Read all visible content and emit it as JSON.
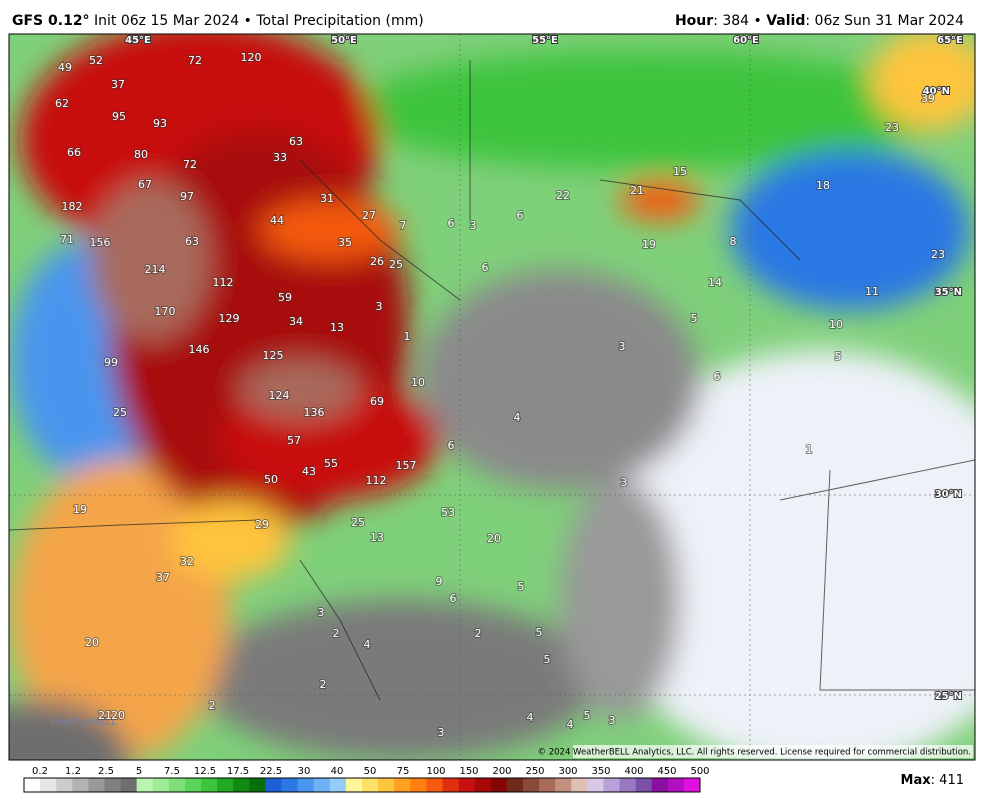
{
  "header": {
    "model": "GFS 0.12°",
    "init": "Init 06z 15 Mar 2024 • Total Precipitation (mm)",
    "hour_key": "Hour",
    "hour_value": ": 384 • ",
    "valid_key": "Valid",
    "valid_value": ": 06z Sun 31 Mar 2024"
  },
  "grid_labels": [
    "45°E",
    "50°E",
    "55°E",
    "60°E",
    "65°E",
    "40°N",
    "35°N",
    "30°N",
    "25°N"
  ],
  "map_labels": [
    49,
    52,
    72,
    120,
    37,
    62,
    95,
    93,
    63,
    66,
    80,
    33,
    72,
    67,
    97,
    31,
    182,
    27,
    44,
    7,
    6,
    3,
    6,
    22,
    21,
    15,
    18,
    23,
    39,
    71,
    156,
    63,
    35,
    19,
    8,
    214,
    26,
    25,
    6,
    23,
    112,
    59,
    14,
    11,
    3,
    170,
    129,
    34,
    13,
    5,
    10,
    1,
    146,
    125,
    3,
    5,
    99,
    10,
    6,
    124,
    69,
    136,
    25,
    4,
    57,
    6,
    1,
    55,
    157,
    43,
    50,
    112,
    3,
    19,
    53,
    25,
    29,
    13,
    20,
    32,
    37,
    9,
    5,
    6,
    3,
    2,
    4,
    20,
    2,
    5,
    5,
    2,
    2,
    21,
    20,
    4,
    3,
    4,
    5,
    3
  ],
  "logo": "WeatherBELL",
  "copyright": "© 2024 WeatherBELL Analytics, LLC. All rights reserved. License required for commercial distribution.",
  "colorbar": {
    "ticks": [
      0.2,
      1.2,
      2.5,
      5,
      7.5,
      12.5,
      17.5,
      22.5,
      30,
      40,
      50,
      75,
      100,
      150,
      200,
      250,
      300,
      350,
      400,
      450,
      500
    ],
    "colors": [
      "#ffffff",
      "#e6e6e6",
      "#cccccc",
      "#b3b3b3",
      "#999999",
      "#808080",
      "#6e6e6e",
      "#b9f5b0",
      "#a0eb96",
      "#7fe07a",
      "#5ad45a",
      "#3cc43c",
      "#22a822",
      "#108a10",
      "#0b6e0b",
      "#1c5fd6",
      "#2b78e4",
      "#4a95ee",
      "#6db2f4",
      "#96cdf8",
      "#fff59a",
      "#ffe066",
      "#ffc43d",
      "#ffa020",
      "#ff7f10",
      "#f55a10",
      "#e03010",
      "#c81010",
      "#a80808",
      "#860606",
      "#6e2a1a",
      "#8a4a3a",
      "#a86b5b",
      "#c49080",
      "#e0c0b4",
      "#d8c8e8",
      "#b8a0d8",
      "#9878c0",
      "#7a50a8",
      "#8a10a0",
      "#b010c0",
      "#e010e0"
    ]
  },
  "max_key": "Max",
  "max_value": 411
}
